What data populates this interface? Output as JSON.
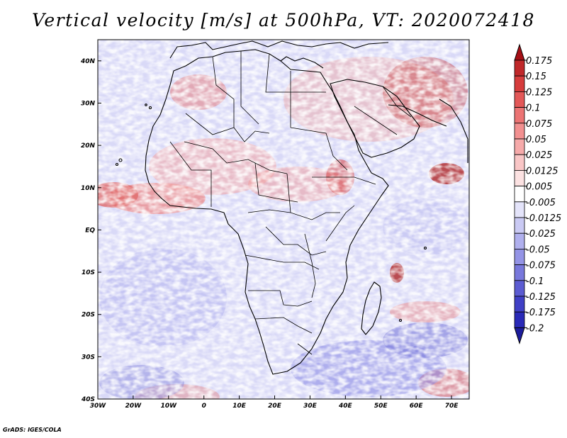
{
  "title": "Vertical velocity [m/s] at 500hPa, VT: 2020072418",
  "credit": "GrADS: IGES/COLA",
  "map": {
    "lon_range": [
      -30,
      75
    ],
    "lat_range": [
      -40,
      45
    ],
    "lon_ticks": [
      "30W",
      "20W",
      "10W",
      "0",
      "10E",
      "20E",
      "30E",
      "40E",
      "50E",
      "60E",
      "70E"
    ],
    "lat_ticks": [
      "40N",
      "30N",
      "20N",
      "10N",
      "EQ",
      "10S",
      "20S",
      "30S",
      "40S"
    ],
    "field_colors": {
      "strong_up": "#b22222",
      "weak_up": "#f4b6b0",
      "neutral": "#ffffff",
      "weak_down": "#c8c8f4",
      "strong_down": "#5050d8"
    }
  },
  "colorbar": {
    "labels": [
      "0.175",
      "0.15",
      "0.125",
      "0.1",
      "0.075",
      "0.05",
      "0.025",
      "0.0125",
      "0.005",
      "-0.005",
      "-0.0125",
      "-0.025",
      "-0.05",
      "-0.075",
      "-0.1",
      "-0.125",
      "-0.175",
      "-0.2"
    ],
    "colors": [
      "#a50f15",
      "#c0282a",
      "#d63c3c",
      "#e35858",
      "#ec7474",
      "#f29090",
      "#f6aaaa",
      "#f9c6c6",
      "#fce2e2",
      "#ffffff",
      "#e4e4fa",
      "#cacaf4",
      "#b0b0ee",
      "#9494e6",
      "#7878dc",
      "#5c5cd2",
      "#4040c6",
      "#2a2ab8",
      "#1c1c9c"
    ]
  }
}
